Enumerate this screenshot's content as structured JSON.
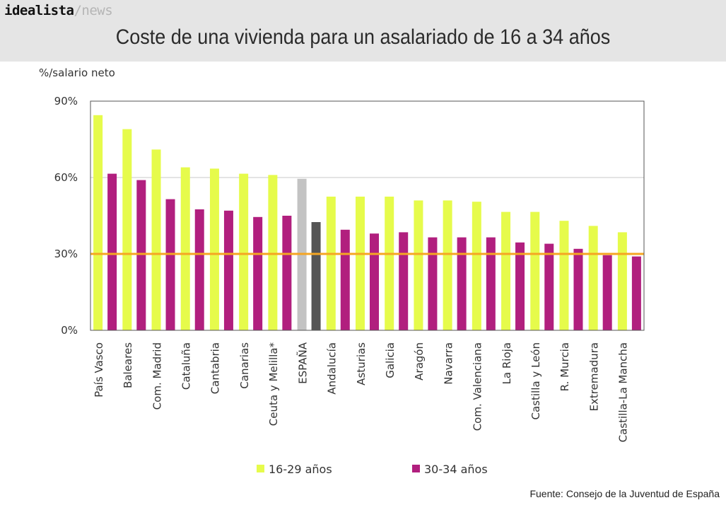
{
  "header": {
    "brand_main": "idealista",
    "brand_sub": "/news"
  },
  "colors": {
    "series_1": "#e6fb4b",
    "series_2": "#b11f7e",
    "highlight_1": "#c3c3c3",
    "highlight_2": "#555555",
    "reference_line": "#f5a623",
    "grid": "#c8c8c8"
  },
  "chart_data": {
    "type": "bar",
    "title": "Coste de una vivienda para un asalariado de 16 a 34 años",
    "ylabel": "%/salario neto",
    "xlabel": "",
    "ylim": [
      0,
      90
    ],
    "yticks": [
      0,
      30,
      60,
      90
    ],
    "ytick_labels": [
      "0%",
      "30%",
      "60%",
      "90%"
    ],
    "grid": true,
    "reference_line": 30,
    "highlight_category": "ESPAÑA",
    "legend_position": "bottom",
    "categories": [
      "País Vasco",
      "Baleares",
      "Com. Madrid",
      "Cataluña",
      "Cantabria",
      "Canarias",
      "Ceuta y Melilla*",
      "ESPAÑA",
      "Andalucía",
      "Asturias",
      "Galicia",
      "Aragón",
      "Navarra",
      "Com. Valenciana",
      "La Rioja",
      "Castilla y León",
      "R. Murcia",
      "Extremadura",
      "Castilla-La Mancha"
    ],
    "series": [
      {
        "name": "16-29 años",
        "values": [
          84.5,
          79,
          71,
          64,
          63.5,
          61.5,
          61,
          59.5,
          52.5,
          52.5,
          52.5,
          51,
          51,
          50.5,
          46.5,
          46.5,
          43,
          41,
          38.5
        ]
      },
      {
        "name": "30-34 años",
        "values": [
          61.5,
          59,
          51.5,
          47.5,
          47,
          44.5,
          45,
          42.5,
          39.5,
          38,
          38.5,
          36.5,
          36.5,
          36.5,
          34.5,
          34,
          32,
          29.5,
          29
        ]
      }
    ],
    "source": "Fuente: Consejo de la Juventud de España"
  }
}
